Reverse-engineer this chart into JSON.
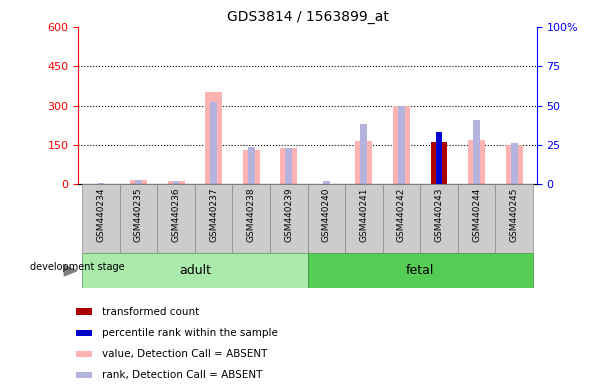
{
  "title": "GDS3814 / 1563899_at",
  "samples": [
    "GSM440234",
    "GSM440235",
    "GSM440236",
    "GSM440237",
    "GSM440238",
    "GSM440239",
    "GSM440240",
    "GSM440241",
    "GSM440242",
    "GSM440243",
    "GSM440244",
    "GSM440245"
  ],
  "adult_count": 6,
  "fetal_count": 6,
  "value_absent": [
    null,
    18,
    12,
    350,
    130,
    140,
    null,
    165,
    300,
    null,
    170,
    150
  ],
  "rank_absent_pct": [
    1,
    3,
    2,
    52,
    24,
    23,
    2,
    38,
    50,
    null,
    41,
    26
  ],
  "transformed_count": [
    null,
    null,
    null,
    null,
    null,
    null,
    null,
    null,
    null,
    160,
    null,
    null
  ],
  "percentile_rank_pct": [
    null,
    null,
    null,
    null,
    null,
    null,
    null,
    null,
    null,
    33,
    null,
    null
  ],
  "ylim_left": [
    0,
    600
  ],
  "ylim_right": [
    0,
    100
  ],
  "yticks_left": [
    0,
    150,
    300,
    450,
    600
  ],
  "yticks_right": [
    0,
    25,
    50,
    75,
    100
  ],
  "color_value_absent": "#ffb3b3",
  "color_rank_absent": "#b3b3dd",
  "color_transformed": "#aa0000",
  "color_percentile": "#0000cc",
  "color_adult_bg": "#aaeaaa",
  "color_fetal_bg": "#55cc55",
  "color_sample_bg": "#cccccc",
  "development_label": "development stage",
  "legend_items": [
    {
      "label": "transformed count",
      "color": "#aa0000"
    },
    {
      "label": "percentile rank within the sample",
      "color": "#0000cc"
    },
    {
      "label": "value, Detection Call = ABSENT",
      "color": "#ffb3b3"
    },
    {
      "label": "rank, Detection Call = ABSENT",
      "color": "#b3b3dd"
    }
  ]
}
